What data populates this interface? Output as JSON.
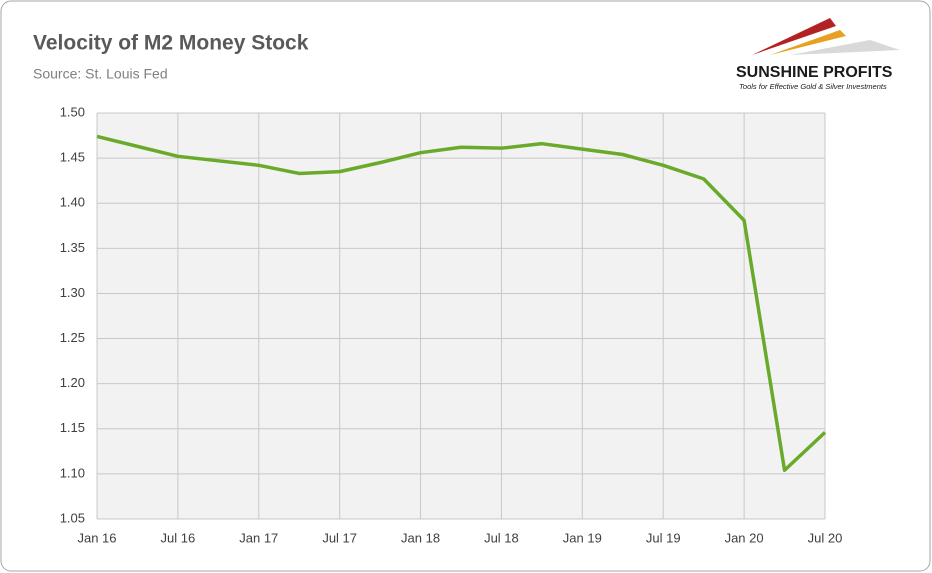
{
  "chart_data": {
    "type": "line",
    "title": "Velocity of M2 Money Stock",
    "subtitle": "Source: St. Louis Fed",
    "logo": {
      "name": "SUNSHINE PROFITS",
      "tagline": "Tools for Effective Gold & Silver Investments"
    },
    "categories": [
      "Jan 16",
      null,
      "Jul 16",
      null,
      "Jan 17",
      null,
      "Jul 17",
      null,
      "Jan 18",
      null,
      "Jul 18",
      null,
      "Jan 19",
      null,
      "Jul 19",
      null,
      "Jan 20",
      null,
      "Jul 20"
    ],
    "values": [
      1.474,
      1.463,
      1.452,
      1.447,
      1.442,
      1.433,
      1.435,
      1.445,
      1.456,
      1.462,
      1.461,
      1.466,
      1.46,
      1.454,
      1.442,
      1.427,
      1.381,
      1.104,
      1.146
    ],
    "color": "#6aaa2a",
    "ylim": [
      1.05,
      1.5
    ],
    "yticks": [
      1.05,
      {
        "value": 1.1,
        "label": "1.10"
      },
      1.15,
      {
        "value": 1.2,
        "label": "1.20"
      },
      1.25,
      {
        "value": 1.3,
        "label": "1.30"
      },
      1.35,
      {
        "value": 1.4,
        "label": "1.40"
      },
      1.45,
      {
        "value": 1.5,
        "label": "1.50"
      }
    ],
    "grid": true
  }
}
